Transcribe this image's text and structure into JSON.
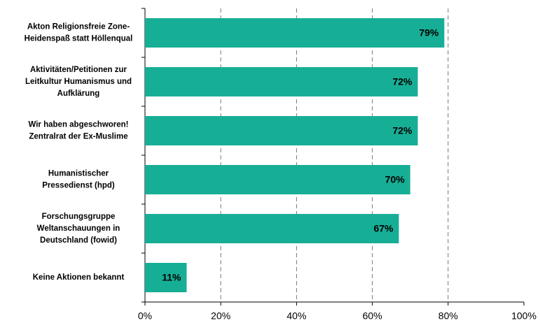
{
  "chart_data": {
    "type": "hbar",
    "categories": [
      "Akton Religionsfreie Zone-\nHeidenspaß statt Höllenqual",
      "Aktivitäten/Petitionen zur\nLeitkultur Humanismus und\nAufklärung",
      "Wir haben abgeschworen!\nZentralrat der Ex-Muslime",
      "Humanistischer\nPressedienst (hpd)",
      "Forschungsgruppe\nWeltanschauungen in\nDeutschland (fowid)",
      "Keine Aktionen bekannt"
    ],
    "values": [
      79,
      72,
      72,
      70,
      67,
      11
    ],
    "value_labels": [
      "79%",
      "72%",
      "72%",
      "70%",
      "67%",
      "11%"
    ],
    "color": "#17ae96",
    "xlim": [
      0,
      100
    ],
    "xticks": [
      {
        "value": 0,
        "label": "0%"
      },
      {
        "value": 20,
        "label": "20%"
      },
      {
        "value": 40,
        "label": "40%"
      },
      {
        "value": 60,
        "label": "60%"
      },
      {
        "value": 80,
        "label": "80%"
      },
      {
        "value": 100,
        "label": "100%"
      }
    ],
    "grid": true
  }
}
